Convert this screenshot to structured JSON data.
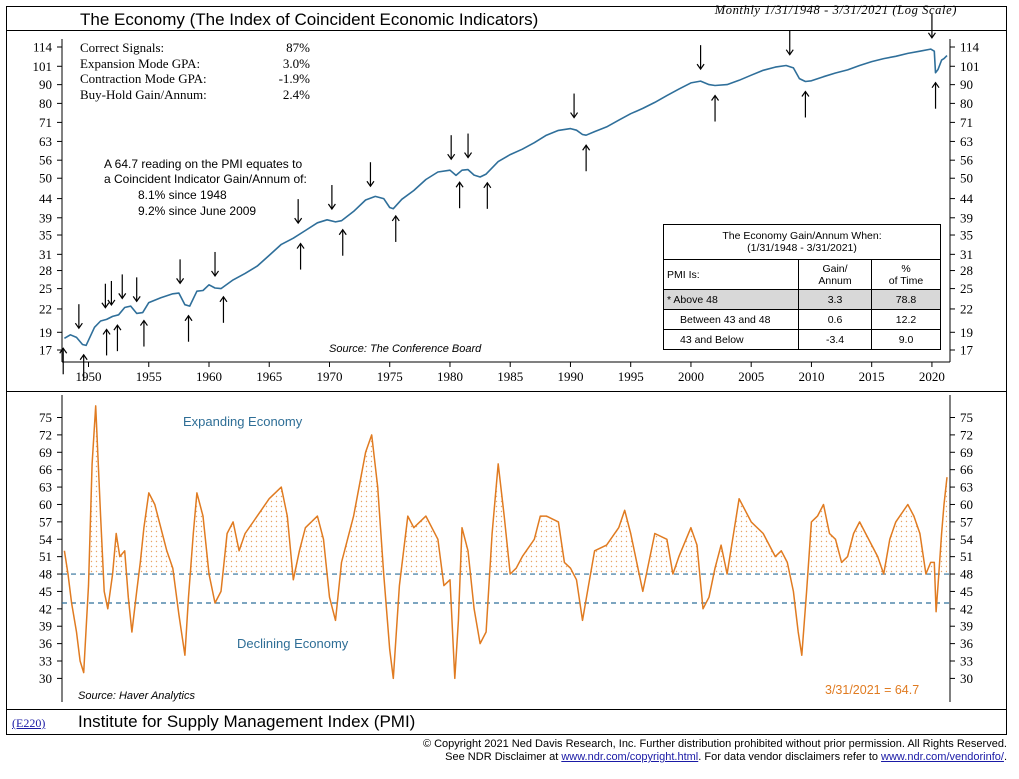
{
  "header": {
    "title": "The Economy (The Index of Coincident Economic Indicators)",
    "subtitle": "Monthly 1/31/1948 - 3/31/2021 (Log Scale)"
  },
  "stats": [
    {
      "label": "Correct Signals:",
      "value": "87%"
    },
    {
      "label": "Expansion Mode GPA:",
      "value": "3.0%"
    },
    {
      "label": "Contraction Mode GPA:",
      "value": "-1.9%"
    },
    {
      "label": "Buy-Hold Gain/Annum:",
      "value": "2.4%"
    }
  ],
  "note": {
    "line1": "A 64.7 reading on the PMI equates to",
    "line2": "a Coincident Indicator Gain/Annum of:",
    "line3": "8.1% since 1948",
    "line4": "9.2% since June 2009"
  },
  "top_source": "Source: The Conference Board",
  "gain_table": {
    "title_line1": "The Economy Gain/Annum When:",
    "title_line2": "(1/31/1948 - 3/31/2021)",
    "col1": "PMI Is:",
    "col2_a": "Gain/",
    "col2_b": "Annum",
    "col3_a": "%",
    "col3_b": "of Time",
    "rows": [
      {
        "label": "* Above 48",
        "gain": "3.3",
        "time": "78.8"
      },
      {
        "label": "Between 43 and 48",
        "gain": "0.6",
        "time": "12.2"
      },
      {
        "label": "43 and Below",
        "gain": "-3.4",
        "time": "9.0"
      }
    ]
  },
  "bottom": {
    "expanding_label": "Expanding Economy",
    "declining_label": "Declining Economy",
    "source": "Source: Haver Analytics",
    "latest_label": "3/31/2021 = 64.7",
    "title": "Institute for Supply Management Index (PMI)"
  },
  "footer": {
    "code": "(E220)",
    "line1": "© Copyright 2021 Ned Davis Research, Inc.  Further distribution prohibited without prior permission.  All Rights Reserved.",
    "line2a": "See NDR Disclaimer at ",
    "link1": "www.ndr.com/copyright.html",
    "line2b": ". For data vendor disclaimers refer to ",
    "link2": "www.ndr.com/vendorinfo/",
    "line2c": "."
  },
  "colors": {
    "coincident_line": "#2f6f9a",
    "pmi_line": "#e07b21",
    "threshold_line": "#2f6f9a"
  },
  "chart_data": [
    {
      "type": "line",
      "title": "The Economy (The Index of Coincident Economic Indicators)",
      "scale": "log",
      "ylim": [
        17,
        114
      ],
      "yticks": [
        17,
        19,
        22,
        25,
        28,
        31,
        35,
        39,
        44,
        50,
        56,
        63,
        71,
        80,
        90,
        101,
        114
      ],
      "xticks": [
        1950,
        1955,
        1960,
        1965,
        1970,
        1975,
        1980,
        1985,
        1990,
        1995,
        2000,
        2005,
        2010,
        2015,
        2020
      ],
      "xlim": [
        1947.8,
        2021.5
      ],
      "series": [
        {
          "x": [
            1948.0,
            1948.5,
            1949.0,
            1949.5,
            1949.8,
            1950.5,
            1951.0,
            1951.5,
            1952.0,
            1952.5,
            1953.0,
            1953.5,
            1954.0,
            1954.5,
            1955.0,
            1956.0,
            1957.0,
            1957.5,
            1958.0,
            1958.4,
            1959.0,
            1959.5,
            1960.0,
            1960.5,
            1961.0,
            1962.0,
            1963.0,
            1964.0,
            1965.0,
            1966.0,
            1967.0,
            1968.0,
            1969.0,
            1969.8,
            1970.5,
            1971.0,
            1972.0,
            1973.0,
            1973.8,
            1974.5,
            1975.0,
            1975.3,
            1976.0,
            1977.0,
            1978.0,
            1979.0,
            1980.0,
            1980.5,
            1981.0,
            1981.5,
            1982.0,
            1982.5,
            1983.0,
            1984.0,
            1985.0,
            1986.0,
            1987.0,
            1988.0,
            1989.0,
            1990.0,
            1990.5,
            1991.0,
            1991.3,
            1992.0,
            1993.0,
            1994.0,
            1995.0,
            1996.0,
            1997.0,
            1998.0,
            1999.0,
            2000.0,
            2000.8,
            2001.5,
            2002.0,
            2003.0,
            2004.0,
            2005.0,
            2006.0,
            2007.0,
            2007.9,
            2008.5,
            2009.0,
            2009.5,
            2010.0,
            2011.0,
            2012.0,
            2013.0,
            2014.0,
            2015.0,
            2016.0,
            2017.0,
            2018.0,
            2019.0,
            2019.9,
            2020.2,
            2020.3,
            2020.5,
            2020.8,
            2021.0,
            2021.25
          ],
          "y": [
            18.3,
            18.7,
            18.4,
            17.6,
            17.5,
            19.6,
            20.4,
            20.6,
            21.0,
            21.2,
            22.2,
            22.4,
            21.4,
            21.5,
            22.9,
            23.6,
            24.2,
            24.3,
            22.6,
            22.4,
            24.6,
            24.7,
            25.6,
            25.1,
            25.0,
            26.4,
            27.5,
            28.8,
            30.8,
            33.0,
            34.3,
            36.0,
            37.8,
            38.5,
            38.0,
            38.3,
            40.6,
            43.6,
            44.6,
            44.0,
            41.6,
            41.3,
            43.8,
            46.3,
            49.6,
            52.0,
            52.6,
            50.9,
            52.6,
            52.8,
            51.0,
            50.4,
            51.3,
            55.5,
            58.0,
            60.0,
            62.5,
            65.5,
            67.5,
            68.3,
            67.6,
            65.8,
            65.5,
            67.0,
            69.0,
            72.0,
            75.0,
            77.5,
            80.5,
            84.0,
            87.5,
            91.0,
            92.0,
            90.0,
            89.5,
            90.0,
            92.5,
            95.5,
            98.5,
            100.5,
            101.5,
            100.0,
            93.5,
            91.8,
            92.2,
            94.6,
            96.8,
            98.7,
            101.5,
            104.0,
            106.0,
            107.5,
            109.5,
            111.0,
            112.5,
            111.0,
            97.0,
            99.0,
            105.0,
            106.0,
            108.0
          ]
        }
      ],
      "signals_sell": [
        1949.2,
        1951.4,
        1951.9,
        1952.8,
        1954.0,
        1957.6,
        1960.5,
        1967.4,
        1970.2,
        1973.4,
        1980.1,
        1981.5,
        1990.3,
        2000.8,
        2008.2,
        2020.0
      ],
      "signals_buy": [
        1947.9,
        1949.6,
        1951.5,
        1952.4,
        1954.6,
        1958.3,
        1961.2,
        1967.6,
        1971.1,
        1975.5,
        1980.8,
        1983.1,
        1991.3,
        2002.0,
        2009.5,
        2020.3
      ]
    },
    {
      "type": "line",
      "title": "Institute for Supply Management Index (PMI)",
      "ylim": [
        28,
        77.5
      ],
      "yticks": [
        30,
        33,
        36,
        39,
        42,
        45,
        48,
        51,
        54,
        57,
        60,
        63,
        66,
        69,
        72,
        75
      ],
      "thresholds": [
        48,
        43
      ],
      "xlim": [
        1947.8,
        2021.5
      ],
      "series": [
        {
          "x": [
            1948.0,
            1948.3,
            1948.6,
            1949.0,
            1949.3,
            1949.6,
            1950.0,
            1950.3,
            1950.6,
            1951.0,
            1951.3,
            1951.6,
            1952.0,
            1952.3,
            1952.6,
            1953.0,
            1953.3,
            1953.6,
            1954.0,
            1954.3,
            1954.6,
            1955.0,
            1955.5,
            1956.0,
            1956.5,
            1957.0,
            1957.5,
            1958.0,
            1958.3,
            1958.7,
            1959.0,
            1959.5,
            1960.0,
            1960.5,
            1961.0,
            1961.5,
            1962.0,
            1962.5,
            1963.0,
            1964.0,
            1965.0,
            1966.0,
            1966.5,
            1967.0,
            1967.5,
            1968.0,
            1969.0,
            1969.5,
            1970.0,
            1970.5,
            1971.0,
            1972.0,
            1973.0,
            1973.5,
            1974.0,
            1974.5,
            1975.0,
            1975.3,
            1975.8,
            1976.5,
            1977.0,
            1978.0,
            1979.0,
            1979.5,
            1980.0,
            1980.4,
            1980.7,
            1981.0,
            1981.5,
            1982.0,
            1982.5,
            1983.0,
            1983.5,
            1984.0,
            1984.5,
            1985.0,
            1985.5,
            1986.0,
            1987.0,
            1987.5,
            1988.0,
            1989.0,
            1989.5,
            1990.0,
            1990.5,
            1991.0,
            1991.5,
            1992.0,
            1993.0,
            1994.0,
            1994.5,
            1995.0,
            1996.0,
            1997.0,
            1998.0,
            1998.5,
            1999.0,
            2000.0,
            2000.5,
            2001.0,
            2001.5,
            2002.0,
            2002.5,
            2003.0,
            2004.0,
            2005.0,
            2006.0,
            2007.0,
            2007.5,
            2008.0,
            2008.5,
            2008.9,
            2009.2,
            2009.6,
            2010.0,
            2010.5,
            2011.0,
            2011.5,
            2012.0,
            2012.5,
            2013.0,
            2013.5,
            2014.0,
            2015.0,
            2015.5,
            2016.0,
            2016.5,
            2017.0,
            2018.0,
            2018.5,
            2019.0,
            2019.5,
            2019.9,
            2020.2,
            2020.35,
            2020.5,
            2020.8,
            2021.0,
            2021.25
          ],
          "y": [
            52,
            48,
            43,
            38,
            33,
            31,
            46,
            67,
            77,
            58,
            45,
            42,
            48,
            55,
            51,
            52,
            44,
            38,
            45,
            50,
            56,
            62,
            60,
            56,
            52,
            49,
            41,
            34,
            44,
            55,
            62,
            58,
            48,
            43,
            45,
            55,
            57,
            52,
            55,
            58,
            61,
            63,
            58,
            47,
            52,
            56,
            58,
            54,
            44,
            40,
            50,
            58,
            69,
            72,
            63,
            48,
            35,
            30,
            46,
            58,
            56,
            58,
            54,
            46,
            47,
            30,
            40,
            56,
            52,
            42,
            36,
            38,
            55,
            67,
            58,
            48,
            49,
            51,
            54,
            58,
            58,
            57,
            50,
            49,
            47,
            40,
            46,
            52,
            53,
            56,
            59,
            55,
            45,
            55,
            54,
            48,
            51,
            56,
            53,
            42,
            44,
            49,
            53,
            48,
            61,
            57,
            55,
            51,
            52,
            50,
            45,
            38,
            34,
            45,
            57,
            58,
            60,
            55,
            54,
            50,
            51,
            55,
            57,
            53,
            51,
            48,
            54,
            57,
            60,
            58,
            55,
            48,
            50,
            50,
            41.5,
            46,
            55,
            60,
            64.7
          ]
        }
      ]
    }
  ]
}
